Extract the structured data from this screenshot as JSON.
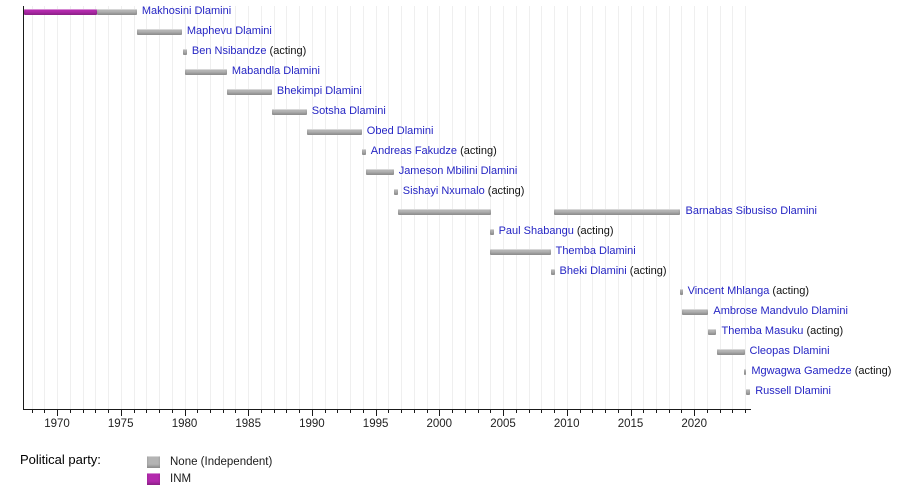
{
  "chart_data": {
    "type": "timeline",
    "description": "Timeline of prime ministers with party-coloured term bars",
    "acting_suffix": " (acting)",
    "legend_title": "Political party:",
    "x_axis": {
      "range": [
        1967.33,
        2024.42
      ],
      "major_tick_labels": [
        "1970",
        "1975",
        "1980",
        "1985",
        "1990",
        "1995",
        "2000",
        "2005",
        "2010",
        "2015",
        "2020"
      ],
      "major_tick_years": [
        1970,
        1975,
        1980,
        1985,
        1990,
        1995,
        2000,
        2005,
        2010,
        2015,
        2020
      ],
      "minor_tick_interval": 1,
      "grid": true
    },
    "parties": [
      {
        "id": "none",
        "label": "None (Independent)",
        "color": "#b4b4b4"
      },
      {
        "id": "inm",
        "label": "INM",
        "color": "#b32aad"
      }
    ],
    "rows": [
      {
        "name": "Makhosini Dlamini",
        "acting": false,
        "bars": [
          {
            "start": 1967.41,
            "end": 1973.14,
            "party": "inm"
          },
          {
            "start": 1973.14,
            "end": 1976.27,
            "party": "none"
          }
        ]
      },
      {
        "name": "Maphevu Dlamini",
        "acting": false,
        "bars": [
          {
            "start": 1976.27,
            "end": 1979.8,
            "party": "none"
          }
        ]
      },
      {
        "name": "Ben Nsibandze",
        "acting": true,
        "bars": [
          {
            "start": 1979.88,
            "end": 1980.19,
            "party": "none"
          }
        ]
      },
      {
        "name": "Mabandla Dlamini",
        "acting": false,
        "bars": [
          {
            "start": 1980.04,
            "end": 1983.33,
            "party": "none"
          }
        ]
      },
      {
        "name": "Bhekimpi Dlamini",
        "acting": false,
        "bars": [
          {
            "start": 1983.33,
            "end": 1986.86,
            "party": "none"
          }
        ]
      },
      {
        "name": "Sotsha Dlamini",
        "acting": false,
        "bars": [
          {
            "start": 1986.86,
            "end": 1989.6,
            "party": "none"
          }
        ]
      },
      {
        "name": "Obed Dlamini",
        "acting": false,
        "bars": [
          {
            "start": 1989.6,
            "end": 1993.92,
            "party": "none"
          }
        ]
      },
      {
        "name": "Andreas Fakudze",
        "acting": true,
        "bars": [
          {
            "start": 1993.92,
            "end": 1994.23,
            "party": "none"
          }
        ]
      },
      {
        "name": "Jameson Mbilini Dlamini",
        "acting": false,
        "bars": [
          {
            "start": 1994.23,
            "end": 1996.42,
            "party": "none"
          }
        ]
      },
      {
        "name": "Sishayi Nxumalo",
        "acting": true,
        "bars": [
          {
            "start": 1996.42,
            "end": 1996.74,
            "party": "none"
          }
        ]
      },
      {
        "name": "Barnabas Sibusiso Dlamini",
        "acting": false,
        "bars": [
          {
            "start": 1996.74,
            "end": 2004.03,
            "party": "none"
          },
          {
            "start": 2008.97,
            "end": 2018.93,
            "party": "none"
          }
        ]
      },
      {
        "name": "Paul Shabangu",
        "acting": true,
        "bars": [
          {
            "start": 2003.95,
            "end": 2004.26,
            "party": "none"
          }
        ]
      },
      {
        "name": "Themba Dlamini",
        "acting": false,
        "bars": [
          {
            "start": 2003.95,
            "end": 2008.73,
            "party": "none"
          }
        ]
      },
      {
        "name": "Bheki Dlamini",
        "acting": true,
        "bars": [
          {
            "start": 2008.73,
            "end": 2009.04,
            "party": "none"
          }
        ]
      },
      {
        "name": "Vincent Mhlanga",
        "acting": true,
        "bars": [
          {
            "start": 2018.85,
            "end": 2019.09,
            "party": "none"
          }
        ]
      },
      {
        "name": "Ambrose Mandvulo Dlamini",
        "acting": false,
        "bars": [
          {
            "start": 2019.01,
            "end": 2021.12,
            "party": "none"
          }
        ]
      },
      {
        "name": "Themba Masuku",
        "acting": true,
        "bars": [
          {
            "start": 2021.12,
            "end": 2021.75,
            "party": "none"
          }
        ]
      },
      {
        "name": "Cleopas Dlamini",
        "acting": false,
        "bars": [
          {
            "start": 2021.75,
            "end": 2023.95,
            "party": "none"
          }
        ]
      },
      {
        "name": "Mgwagwa Gamedze",
        "acting": true,
        "bars": [
          {
            "start": 2023.87,
            "end": 2024.1,
            "party": "none"
          }
        ]
      },
      {
        "name": "Russell Dlamini",
        "acting": false,
        "bars": [
          {
            "start": 2024.1,
            "end": 2024.4,
            "party": "none"
          }
        ]
      }
    ]
  }
}
